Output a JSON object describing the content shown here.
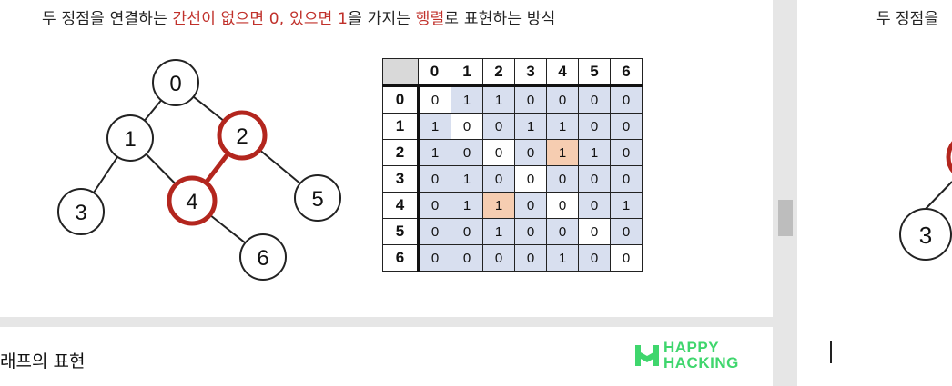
{
  "slide": {
    "headline_parts": [
      "두 정점을 연결하는 ",
      "간선이 없으면 0, 있으면 1",
      "을 가지는 ",
      "행렬",
      "로 표현하는 방식"
    ],
    "highlight_color": "#c0302a"
  },
  "graph": {
    "nodes": [
      "0",
      "1",
      "2",
      "3",
      "4",
      "5",
      "6"
    ],
    "edges": [
      [
        "0",
        "1"
      ],
      [
        "0",
        "2"
      ],
      [
        "1",
        "3"
      ],
      [
        "1",
        "4"
      ],
      [
        "2",
        "4"
      ],
      [
        "2",
        "5"
      ],
      [
        "4",
        "6"
      ]
    ],
    "highlighted_nodes": [
      "2",
      "4"
    ],
    "highlighted_edges": [
      [
        "2",
        "4"
      ]
    ],
    "highlight_color": "#b3261e"
  },
  "matrix": {
    "headers": [
      "0",
      "1",
      "2",
      "3",
      "4",
      "5",
      "6"
    ],
    "rows": [
      [
        "0",
        "1",
        "1",
        "0",
        "0",
        "0",
        "0"
      ],
      [
        "1",
        "0",
        "0",
        "1",
        "1",
        "0",
        "0"
      ],
      [
        "1",
        "0",
        "0",
        "0",
        "1",
        "1",
        "0"
      ],
      [
        "0",
        "1",
        "0",
        "0",
        "0",
        "0",
        "0"
      ],
      [
        "0",
        "1",
        "1",
        "0",
        "0",
        "0",
        "1"
      ],
      [
        "0",
        "0",
        "1",
        "0",
        "0",
        "0",
        "0"
      ],
      [
        "0",
        "0",
        "0",
        "0",
        "1",
        "0",
        "0"
      ]
    ],
    "highlighted_cells": [
      [
        2,
        4
      ],
      [
        4,
        2
      ]
    ]
  },
  "bottom": {
    "title": "래프의 표현",
    "logo_line1": "HAPPY",
    "logo_line2": "HACKING",
    "logo_color": "#3fd66d"
  },
  "right_panel": {
    "headline": "두 정점을",
    "node_label": "3"
  }
}
